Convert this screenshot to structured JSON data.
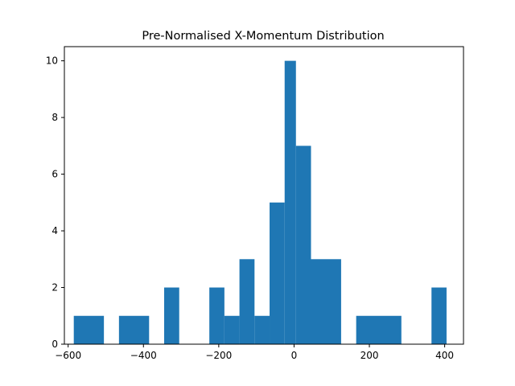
{
  "chart_data": {
    "type": "bar",
    "title": "Pre-Normalised X-Momentum Distribution",
    "xlabel": "",
    "ylabel": "",
    "xlim": [
      -610,
      450
    ],
    "ylim": [
      0,
      10.5
    ],
    "x_ticks": [
      -600,
      -400,
      -200,
      0,
      200,
      400
    ],
    "x_tick_labels": [
      "−600",
      "−400",
      "−200",
      "0",
      "200",
      "400"
    ],
    "y_ticks": [
      0,
      2,
      4,
      6,
      8,
      10
    ],
    "y_tick_labels": [
      "0",
      "2",
      "4",
      "6",
      "8",
      "10"
    ],
    "grid": false,
    "bar_color": "#1f77b4",
    "bins": [
      {
        "start": -585,
        "end": -505,
        "count": 1
      },
      {
        "start": -465,
        "end": -385,
        "count": 1
      },
      {
        "start": -345,
        "end": -305,
        "count": 2
      },
      {
        "start": -225,
        "end": -185,
        "count": 2
      },
      {
        "start": -185,
        "end": -145,
        "count": 1
      },
      {
        "start": -145,
        "end": -105,
        "count": 3
      },
      {
        "start": -105,
        "end": -65,
        "count": 1
      },
      {
        "start": -65,
        "end": -25,
        "count": 5
      },
      {
        "start": -25,
        "end": 5,
        "count": 10
      },
      {
        "start": 5,
        "end": 45,
        "count": 7
      },
      {
        "start": 45,
        "end": 125,
        "count": 3
      },
      {
        "start": 165,
        "end": 285,
        "count": 1
      },
      {
        "start": 365,
        "end": 405,
        "count": 2
      }
    ]
  }
}
